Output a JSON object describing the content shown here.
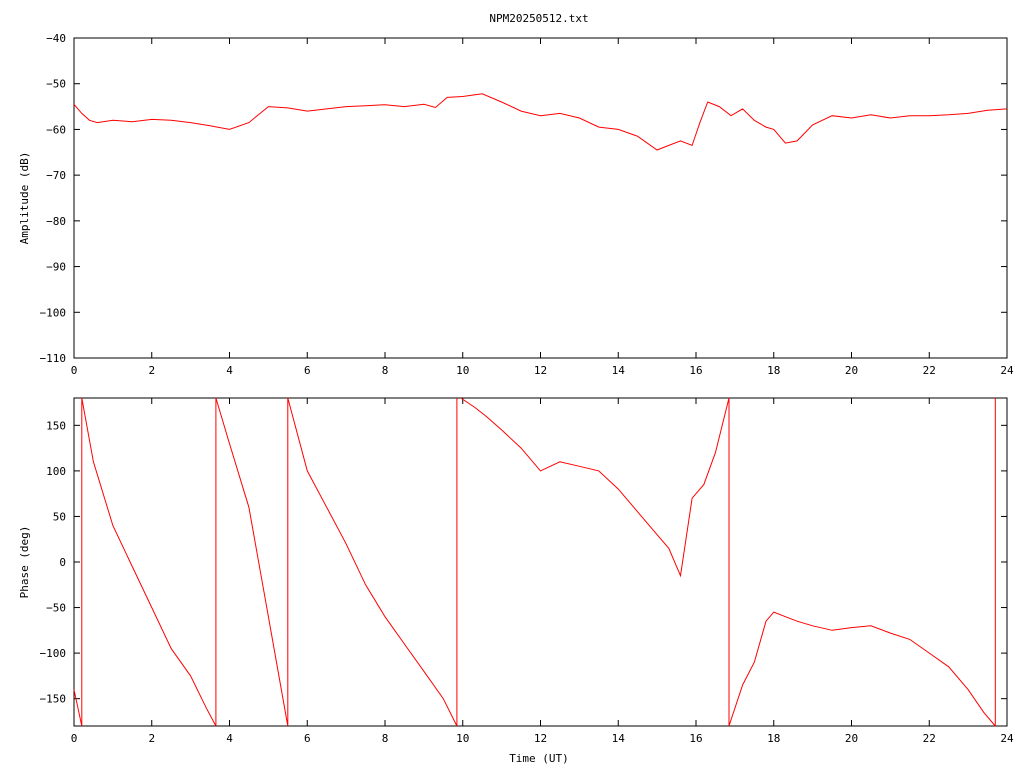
{
  "title": "NPM20250512.txt",
  "colors": {
    "trace": "#ff0000",
    "axes": "#000000",
    "background": "#ffffff"
  },
  "chart_data": [
    {
      "type": "line",
      "ylabel": "Amplitude (dB)",
      "xlabel": "",
      "xlim": [
        0,
        24
      ],
      "ylim": [
        -110,
        -40
      ],
      "xticks": [
        0,
        2,
        4,
        6,
        8,
        10,
        12,
        14,
        16,
        18,
        20,
        22,
        24
      ],
      "yticks": [
        -40,
        -50,
        -60,
        -70,
        -80,
        -90,
        -100,
        -110
      ],
      "grid": false,
      "series": [
        {
          "x": [
            0,
            0.2,
            0.4,
            0.6,
            1.0,
            1.5,
            2.0,
            2.5,
            3.0,
            3.5,
            4.0,
            4.5,
            5.0,
            5.5,
            6.0,
            6.5,
            7.0,
            7.5,
            8.0,
            8.5,
            9.0,
            9.3,
            9.6,
            10.0,
            10.5,
            11.0,
            11.5,
            12.0,
            12.5,
            13.0,
            13.5,
            14.0,
            14.5,
            15.0,
            15.3,
            15.6,
            15.9,
            16.1,
            16.3,
            16.6,
            16.9,
            17.2,
            17.5,
            17.8,
            18.0,
            18.3,
            18.6,
            19.0,
            19.5,
            20.0,
            20.5,
            21.0,
            21.5,
            22.0,
            22.5,
            23.0,
            23.5,
            24.0
          ],
          "y": [
            -54.5,
            -56.5,
            -58.0,
            -58.5,
            -58.0,
            -58.3,
            -57.8,
            -58.0,
            -58.5,
            -59.2,
            -60.0,
            -58.5,
            -55.0,
            -55.3,
            -56.0,
            -55.5,
            -55.0,
            -54.8,
            -54.6,
            -55.0,
            -54.5,
            -55.2,
            -53.0,
            -52.8,
            -52.2,
            -54.0,
            -56.0,
            -57.0,
            -56.5,
            -57.5,
            -59.5,
            -60.0,
            -61.5,
            -64.5,
            -63.5,
            -62.5,
            -63.5,
            -58.5,
            -54.0,
            -55.0,
            -57.0,
            -55.5,
            -58.0,
            -59.5,
            -60.0,
            -63.0,
            -62.5,
            -59.0,
            -57.0,
            -57.5,
            -56.8,
            -57.5,
            -57.0,
            -57.0,
            -56.8,
            -56.5,
            -55.8,
            -55.5
          ]
        }
      ]
    },
    {
      "type": "line",
      "ylabel": "Phase (deg)",
      "xlabel": "Time (UT)",
      "xlim": [
        0,
        24
      ],
      "ylim": [
        -180,
        180
      ],
      "xticks": [
        0,
        2,
        4,
        6,
        8,
        10,
        12,
        14,
        16,
        18,
        20,
        22,
        24
      ],
      "yticks": [
        150,
        100,
        50,
        0,
        -50,
        -100,
        -150
      ],
      "grid": false,
      "series": [
        {
          "segments": [
            {
              "x": [
                0,
                0.1,
                0.2
              ],
              "y": [
                -140,
                -160,
                -180
              ]
            },
            {
              "x": [
                0.2,
                0.5,
                1.0,
                1.5,
                2.0,
                2.5,
                3.0,
                3.4,
                3.65
              ],
              "y": [
                180,
                110,
                40,
                -5,
                -50,
                -95,
                -125,
                -160,
                -180
              ]
            },
            {
              "x": [
                3.65,
                4.0,
                4.5,
                5.0,
                5.5
              ],
              "y": [
                180,
                130,
                60,
                -60,
                -180
              ]
            },
            {
              "x": [
                5.5,
                6.0,
                6.5,
                7.0,
                7.5,
                8.0,
                8.5,
                9.0,
                9.5,
                9.85
              ],
              "y": [
                180,
                100,
                60,
                20,
                -25,
                -60,
                -90,
                -120,
                -150,
                -180
              ]
            },
            {
              "x": [
                9.95,
                10.3,
                10.6,
                11.0,
                11.5,
                12.0,
                12.5,
                13.0,
                13.5,
                14.0,
                14.5,
                15.0,
                15.3,
                15.6,
                15.9,
                16.2,
                16.5,
                16.85
              ],
              "y": [
                180,
                170,
                160,
                145,
                125,
                100,
                110,
                105,
                100,
                80,
                55,
                30,
                15,
                -15,
                70,
                85,
                120,
                180
              ]
            },
            {
              "x": [
                16.85,
                17.2,
                17.5,
                17.8,
                18.0,
                18.3,
                18.6,
                19.0,
                19.5,
                20.0,
                20.5,
                21.0,
                21.5,
                22.0,
                22.5,
                23.0,
                23.4,
                23.7
              ],
              "y": [
                -180,
                -135,
                -110,
                -65,
                -55,
                -60,
                -65,
                -70,
                -75,
                -72,
                -70,
                -78,
                -85,
                -100,
                -115,
                -140,
                -165,
                -180
              ]
            }
          ]
        }
      ]
    }
  ]
}
